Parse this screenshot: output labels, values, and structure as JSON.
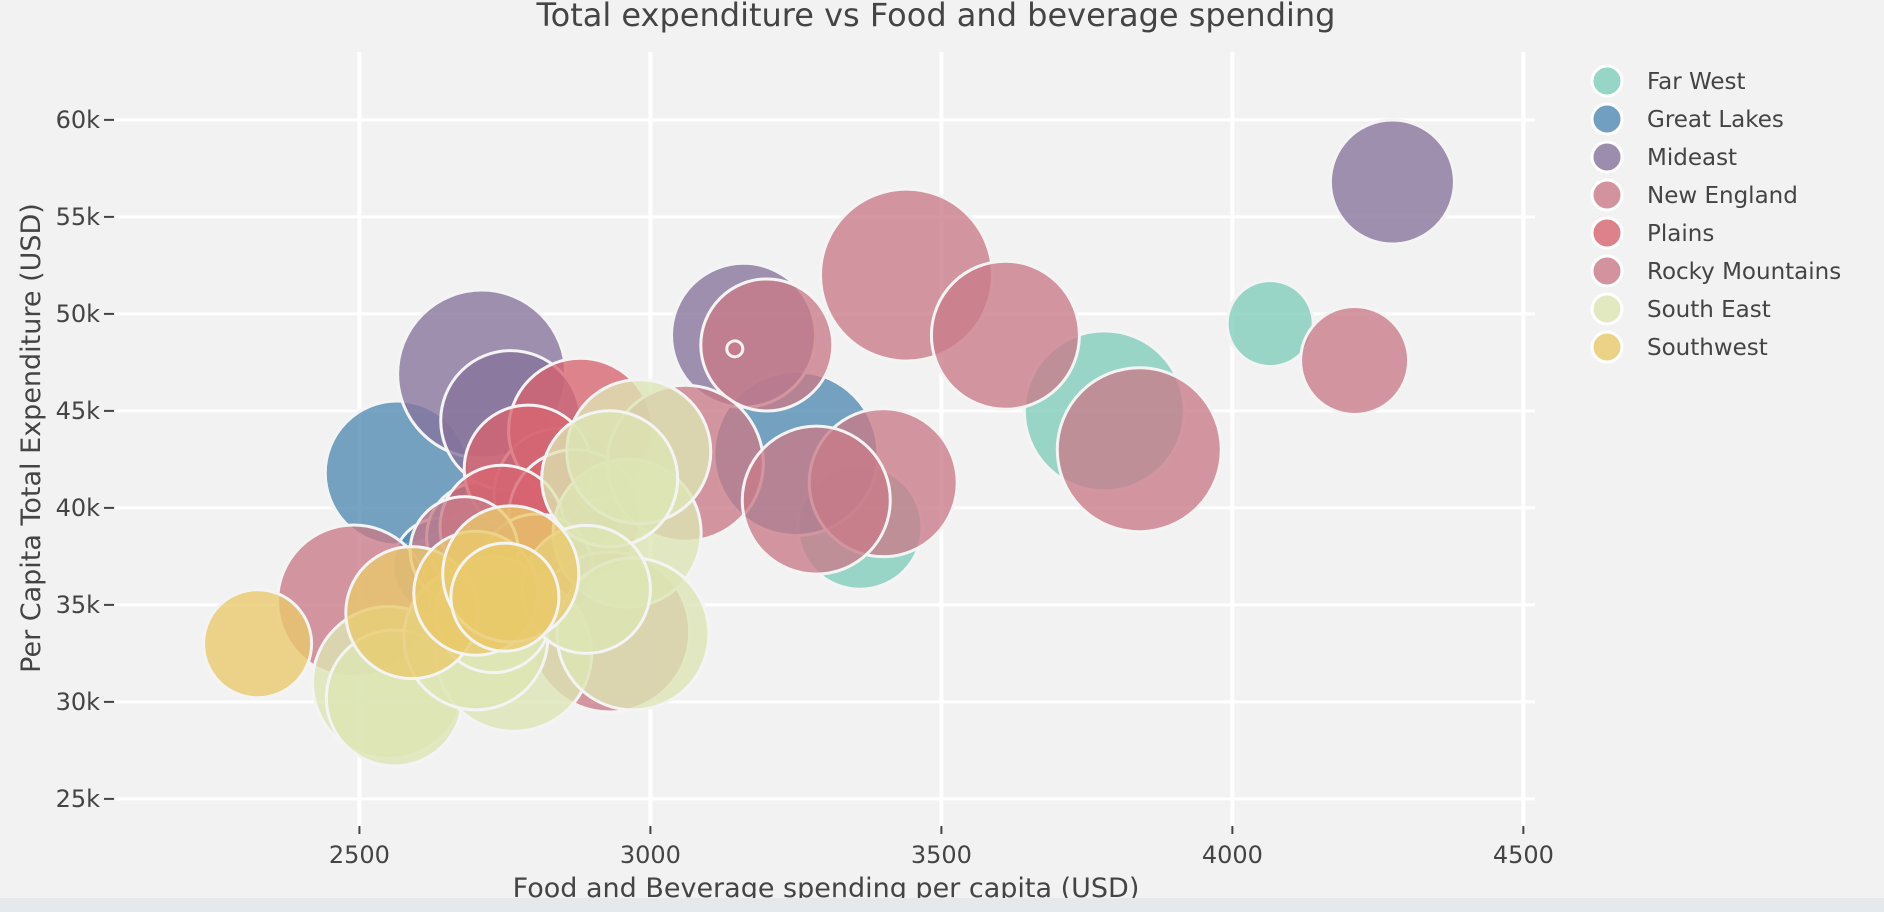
{
  "chart_data": {
    "type": "scatter",
    "title": "Total expenditure vs Food and beverage spending",
    "xlabel": "Food and Beverage spending per capita (USD)",
    "ylabel": "Per Capita Total Expenditure (USD)",
    "xlim": [
      2080,
      4520
    ],
    "ylim": [
      23500,
      63500
    ],
    "x_ticks": [
      2500,
      3000,
      3500,
      4000,
      4500
    ],
    "x_tick_labels": [
      "2500",
      "3000",
      "3500",
      "4000",
      "4500"
    ],
    "y_ticks": [
      25000,
      30000,
      35000,
      40000,
      45000,
      50000,
      55000,
      60000
    ],
    "y_tick_labels": [
      "25k",
      "30k",
      "35k",
      "40k",
      "45k",
      "50k",
      "55k",
      "60k"
    ],
    "grid": true,
    "legend_position": "right",
    "series": [
      {
        "name": "Far West",
        "color": "#7fcdbb",
        "points": [
          {
            "x": 3360,
            "y": 39000,
            "r": 62
          },
          {
            "x": 3780,
            "y": 45000,
            "r": 80
          },
          {
            "x": 4065,
            "y": 49500,
            "r": 43
          }
        ]
      },
      {
        "name": "Great Lakes",
        "color": "#4f8ab1",
        "points": [
          {
            "x": 2565,
            "y": 41800,
            "r": 72
          },
          {
            "x": 2640,
            "y": 37000,
            "r": 48
          },
          {
            "x": 2710,
            "y": 38500,
            "r": 55
          },
          {
            "x": 3250,
            "y": 42800,
            "r": 82
          }
        ]
      },
      {
        "name": "Mideast",
        "color": "#86739c",
        "points": [
          {
            "x": 2710,
            "y": 46900,
            "r": 84
          },
          {
            "x": 2760,
            "y": 44500,
            "r": 70
          },
          {
            "x": 3160,
            "y": 48900,
            "r": 72
          },
          {
            "x": 4275,
            "y": 56800,
            "r": 62
          },
          {
            "x": 2845,
            "y": 40700,
            "r": 66
          }
        ]
      },
      {
        "name": "New England",
        "color": "#c97b89",
        "points": [
          {
            "x": 3440,
            "y": 52000,
            "r": 86
          },
          {
            "x": 3610,
            "y": 48900,
            "r": 74
          },
          {
            "x": 3840,
            "y": 43000,
            "r": 82
          },
          {
            "x": 4210,
            "y": 47600,
            "r": 54
          },
          {
            "x": 3200,
            "y": 48400,
            "r": 66
          },
          {
            "x": 3145,
            "y": 48200,
            "r": 8
          }
        ]
      },
      {
        "name": "Plains",
        "color": "#d7646f",
        "points": [
          {
            "x": 2880,
            "y": 44000,
            "r": 72
          },
          {
            "x": 2790,
            "y": 42000,
            "r": 64
          },
          {
            "x": 2870,
            "y": 39600,
            "r": 66
          },
          {
            "x": 2745,
            "y": 39000,
            "r": 62
          },
          {
            "x": 2805,
            "y": 36800,
            "r": 56
          }
        ]
      },
      {
        "name": "Rocky Mountains",
        "color": "#c97b89",
        "points": [
          {
            "x": 2490,
            "y": 35200,
            "r": 76
          },
          {
            "x": 3060,
            "y": 42300,
            "r": 78
          },
          {
            "x": 3400,
            "y": 41300,
            "r": 74
          },
          {
            "x": 3285,
            "y": 40400,
            "r": 74
          },
          {
            "x": 2930,
            "y": 33600,
            "r": 80
          },
          {
            "x": 2680,
            "y": 37800,
            "r": 54
          }
        ]
      },
      {
        "name": "South East",
        "color": "#dde6b4",
        "points": [
          {
            "x": 2550,
            "y": 31000,
            "r": 76
          },
          {
            "x": 2560,
            "y": 30200,
            "r": 68
          },
          {
            "x": 2765,
            "y": 32500,
            "r": 78
          },
          {
            "x": 2700,
            "y": 33300,
            "r": 72
          },
          {
            "x": 2730,
            "y": 34500,
            "r": 58
          },
          {
            "x": 2960,
            "y": 38700,
            "r": 74
          },
          {
            "x": 2980,
            "y": 42900,
            "r": 72
          },
          {
            "x": 2930,
            "y": 41500,
            "r": 68
          },
          {
            "x": 2970,
            "y": 33500,
            "r": 76
          },
          {
            "x": 2890,
            "y": 35800,
            "r": 64
          }
        ]
      },
      {
        "name": "Southwest",
        "color": "#e9c96a",
        "points": [
          {
            "x": 2325,
            "y": 33000,
            "r": 54
          },
          {
            "x": 2590,
            "y": 34600,
            "r": 66
          },
          {
            "x": 2700,
            "y": 35600,
            "r": 62
          },
          {
            "x": 2760,
            "y": 36600,
            "r": 68
          },
          {
            "x": 2750,
            "y": 35400,
            "r": 54
          }
        ]
      }
    ]
  }
}
